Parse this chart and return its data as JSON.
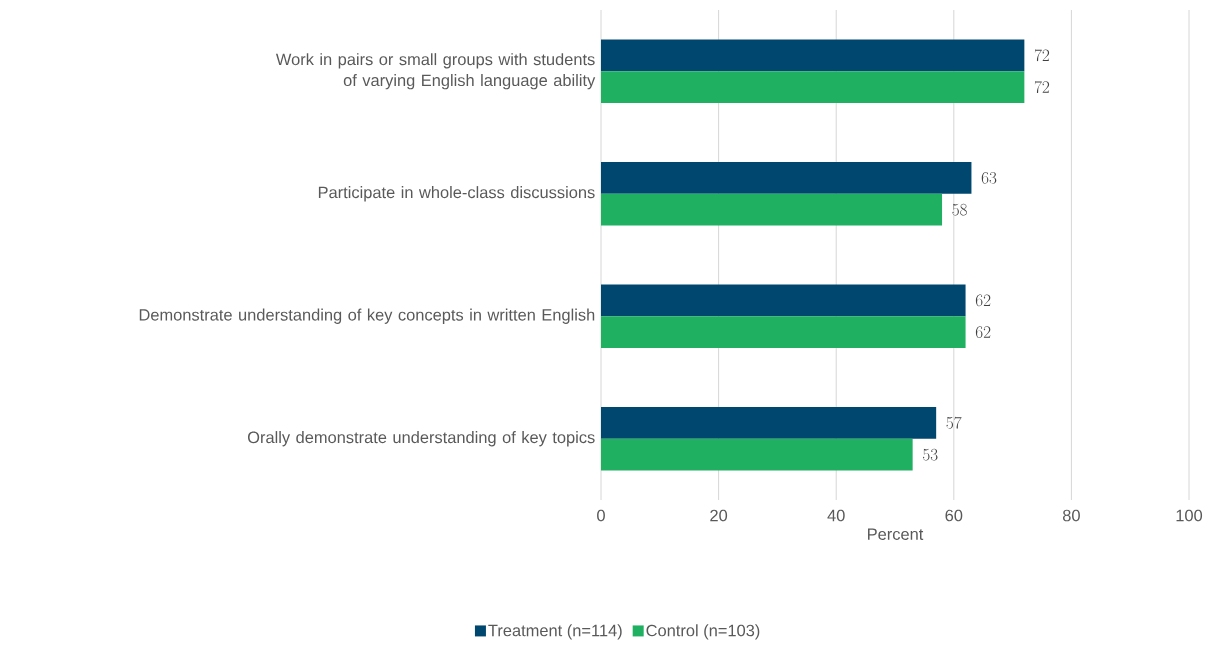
{
  "chart_data": {
    "type": "bar",
    "orientation": "horizontal",
    "categories": [
      "Work in pairs or small groups with students of varying English language ability",
      "Participate in whole-class discussions",
      "Demonstrate understanding of key concepts in written English",
      "Orally demonstrate understanding of key topics"
    ],
    "series": [
      {
        "name": "Treatment (n=114)",
        "color": "#00476f",
        "values": [
          72,
          63,
          62,
          57
        ]
      },
      {
        "name": "Control (n=103)",
        "color": "#1fb062",
        "values": [
          72,
          58,
          62,
          53
        ]
      }
    ],
    "xlabel": "Percent",
    "xlim": [
      0,
      100
    ],
    "xticks": [
      0,
      20,
      40,
      60,
      80,
      100
    ],
    "grid": "x",
    "legend": "bottom",
    "data_labels": true
  }
}
